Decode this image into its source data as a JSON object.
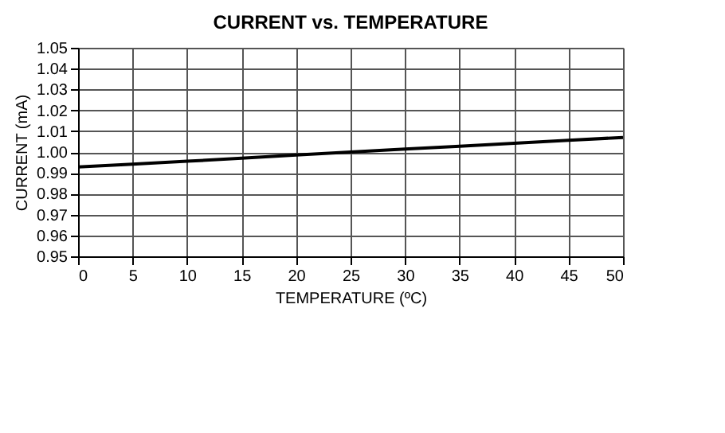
{
  "chart_data": {
    "type": "line",
    "title": "CURRENT vs. TEMPERATURE",
    "xlabel": "TEMPERATURE (ºC)",
    "ylabel": "CURRENT (mA)",
    "x": [
      0,
      5,
      10,
      15,
      20,
      25,
      30,
      35,
      40,
      45,
      50
    ],
    "series": [
      {
        "color": "#000000",
        "values": [
          0.9928,
          0.9942,
          0.9956,
          0.997,
          0.9986,
          1.0,
          1.0014,
          1.0028,
          1.0042,
          1.0056,
          1.007
        ]
      }
    ],
    "xlim": [
      0,
      50
    ],
    "xticks": [
      0,
      5,
      10,
      15,
      20,
      25,
      30,
      35,
      40,
      45,
      50
    ],
    "ylim": [
      0.95,
      1.05
    ],
    "yticks": [
      {
        "value": 0.95,
        "label": "0.95"
      },
      {
        "value": 0.96,
        "label": "0.96"
      },
      {
        "value": 0.97,
        "label": "0.97"
      },
      {
        "value": 0.98,
        "label": "0.98"
      },
      {
        "value": 0.99,
        "label": "0.99"
      },
      {
        "value": 1.0,
        "label": "1.00"
      },
      {
        "value": 1.01,
        "label": "1.01"
      },
      {
        "value": 1.02,
        "label": "1.02"
      },
      {
        "value": 1.03,
        "label": "1.03"
      },
      {
        "value": 1.04,
        "label": "1.04"
      },
      {
        "value": 1.05,
        "label": "1.05"
      }
    ],
    "grid": true,
    "marker": "none",
    "line_style": "solid"
  }
}
